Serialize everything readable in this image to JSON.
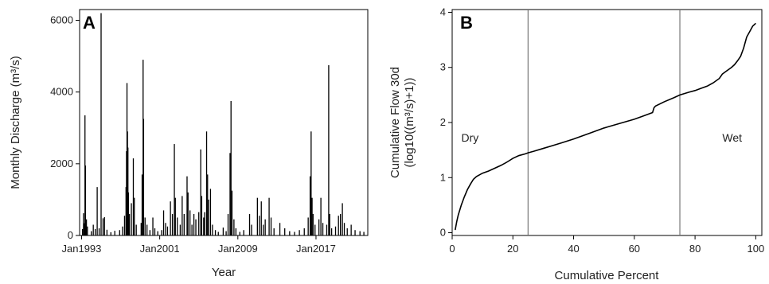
{
  "chart_data": [
    {
      "panel": "A",
      "type": "bar",
      "xlabel": "Year",
      "ylabel": "Monthly Discharge (m³/s)",
      "ylim": [
        0,
        6300
      ],
      "xlim": [
        1992.8,
        2022.3
      ],
      "yticks": [
        0,
        2000,
        4000,
        6000
      ],
      "xticks": [
        {
          "value": 1993.0,
          "label": "Jan1993"
        },
        {
          "value": 2001.0,
          "label": "Jan2001"
        },
        {
          "value": 2009.0,
          "label": "Jan2009"
        },
        {
          "value": 2017.0,
          "label": "Jan2017"
        }
      ],
      "grid": false,
      "peaks": [
        [
          1993.1,
          180
        ],
        [
          1993.2,
          620
        ],
        [
          1993.3,
          340
        ],
        [
          1993.35,
          3350
        ],
        [
          1993.4,
          1950
        ],
        [
          1993.5,
          450
        ],
        [
          1993.6,
          250
        ],
        [
          1994.0,
          120
        ],
        [
          1994.2,
          300
        ],
        [
          1994.4,
          180
        ],
        [
          1994.6,
          1350
        ],
        [
          1994.8,
          200
        ],
        [
          1995.0,
          6200
        ],
        [
          1995.2,
          480
        ],
        [
          1995.35,
          510
        ],
        [
          1995.6,
          160
        ],
        [
          1996.0,
          90
        ],
        [
          1996.4,
          130
        ],
        [
          1996.9,
          150
        ],
        [
          1997.2,
          250
        ],
        [
          1997.4,
          550
        ],
        [
          1997.55,
          1350
        ],
        [
          1997.6,
          2350
        ],
        [
          1997.65,
          4250
        ],
        [
          1997.7,
          2900
        ],
        [
          1997.75,
          2450
        ],
        [
          1997.8,
          1200
        ],
        [
          1997.9,
          600
        ],
        [
          1998.1,
          900
        ],
        [
          1998.3,
          2150
        ],
        [
          1998.4,
          1050
        ],
        [
          1998.6,
          300
        ],
        [
          1999.1,
          350
        ],
        [
          1999.2,
          1700
        ],
        [
          1999.3,
          4900
        ],
        [
          1999.35,
          3250
        ],
        [
          1999.5,
          500
        ],
        [
          1999.7,
          300
        ],
        [
          2000.0,
          150
        ],
        [
          2000.3,
          500
        ],
        [
          2000.5,
          200
        ],
        [
          2000.8,
          120
        ],
        [
          2001.2,
          150
        ],
        [
          2001.4,
          700
        ],
        [
          2001.6,
          350
        ],
        [
          2001.8,
          250
        ],
        [
          2002.1,
          950
        ],
        [
          2002.3,
          600
        ],
        [
          2002.5,
          2550
        ],
        [
          2002.6,
          1050
        ],
        [
          2002.8,
          500
        ],
        [
          2003.1,
          300
        ],
        [
          2003.3,
          1100
        ],
        [
          2003.5,
          600
        ],
        [
          2003.8,
          1650
        ],
        [
          2003.9,
          1200
        ],
        [
          2004.1,
          700
        ],
        [
          2004.3,
          300
        ],
        [
          2004.5,
          600
        ],
        [
          2004.7,
          450
        ],
        [
          2005.0,
          650
        ],
        [
          2005.2,
          2400
        ],
        [
          2005.3,
          1100
        ],
        [
          2005.5,
          500
        ],
        [
          2005.6,
          650
        ],
        [
          2005.8,
          2900
        ],
        [
          2005.9,
          1700
        ],
        [
          2006.0,
          1000
        ],
        [
          2006.2,
          1300
        ],
        [
          2006.4,
          300
        ],
        [
          2006.7,
          150
        ],
        [
          2007.0,
          100
        ],
        [
          2007.5,
          220
        ],
        [
          2007.8,
          120
        ],
        [
          2008.0,
          600
        ],
        [
          2008.2,
          2300
        ],
        [
          2008.3,
          3750
        ],
        [
          2008.4,
          1250
        ],
        [
          2008.6,
          450
        ],
        [
          2008.8,
          200
        ],
        [
          2009.2,
          100
        ],
        [
          2009.6,
          150
        ],
        [
          2010.2,
          600
        ],
        [
          2010.4,
          300
        ],
        [
          2011.0,
          1050
        ],
        [
          2011.2,
          550
        ],
        [
          2011.4,
          950
        ],
        [
          2011.6,
          300
        ],
        [
          2011.8,
          450
        ],
        [
          2012.2,
          1050
        ],
        [
          2012.4,
          500
        ],
        [
          2012.7,
          200
        ],
        [
          2013.3,
          350
        ],
        [
          2013.8,
          200
        ],
        [
          2014.3,
          120
        ],
        [
          2014.8,
          100
        ],
        [
          2015.3,
          150
        ],
        [
          2015.8,
          200
        ],
        [
          2016.2,
          500
        ],
        [
          2016.4,
          1650
        ],
        [
          2016.5,
          2900
        ],
        [
          2016.6,
          1050
        ],
        [
          2016.7,
          600
        ],
        [
          2016.9,
          300
        ],
        [
          2017.3,
          450
        ],
        [
          2017.5,
          1050
        ],
        [
          2017.7,
          350
        ],
        [
          2018.1,
          300
        ],
        [
          2018.3,
          4750
        ],
        [
          2018.4,
          600
        ],
        [
          2018.6,
          200
        ],
        [
          2019.0,
          250
        ],
        [
          2019.3,
          550
        ],
        [
          2019.5,
          600
        ],
        [
          2019.7,
          900
        ],
        [
          2019.9,
          350
        ],
        [
          2020.2,
          200
        ],
        [
          2020.6,
          300
        ],
        [
          2021.0,
          150
        ],
        [
          2021.5,
          120
        ],
        [
          2021.9,
          100
        ]
      ]
    },
    {
      "panel": "B",
      "type": "line",
      "xlabel": "Cumulative Percent",
      "ylabel_lines": [
        "Cumulative Flow 30d",
        "(log10((m³/s)+1))"
      ],
      "xlim": [
        0,
        102
      ],
      "ylim": [
        -0.05,
        4.05
      ],
      "xticks": [
        0,
        20,
        40,
        60,
        80,
        100
      ],
      "yticks": [
        0,
        1,
        2,
        3,
        4
      ],
      "grid": false,
      "vlines": [
        25,
        75
      ],
      "annotations": [
        {
          "text": "Dry",
          "x": 3,
          "y": 1.65
        },
        {
          "text": "Wet",
          "x": 89,
          "y": 1.65
        }
      ],
      "x": [
        1,
        1.5,
        2,
        3,
        4,
        5,
        6,
        7,
        8,
        9,
        10,
        12,
        14,
        16,
        18,
        20,
        22,
        24,
        25,
        27,
        30,
        33,
        36,
        40,
        45,
        50,
        55,
        60,
        63,
        66,
        66.5,
        67,
        70,
        73,
        75,
        78,
        80,
        82,
        84,
        86,
        88,
        89,
        90,
        92,
        93,
        94,
        95,
        96,
        97,
        98,
        99,
        100
      ],
      "y": [
        0.05,
        0.2,
        0.32,
        0.5,
        0.65,
        0.78,
        0.88,
        0.97,
        1.02,
        1.05,
        1.08,
        1.12,
        1.17,
        1.22,
        1.28,
        1.35,
        1.4,
        1.43,
        1.45,
        1.48,
        1.53,
        1.58,
        1.63,
        1.7,
        1.8,
        1.9,
        1.98,
        2.06,
        2.12,
        2.18,
        2.27,
        2.3,
        2.38,
        2.45,
        2.5,
        2.55,
        2.58,
        2.62,
        2.66,
        2.72,
        2.8,
        2.88,
        2.92,
        3.0,
        3.05,
        3.12,
        3.2,
        3.35,
        3.55,
        3.65,
        3.75,
        3.8
      ]
    }
  ]
}
